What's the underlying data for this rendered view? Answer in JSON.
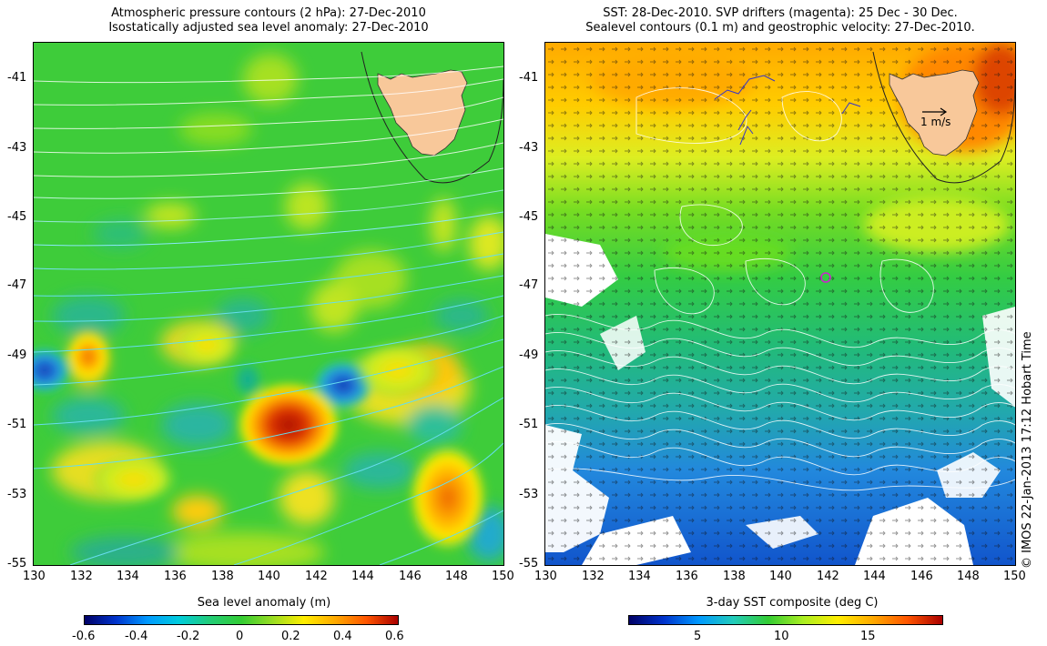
{
  "left": {
    "title_line1": "Atmospheric pressure contours (2 hPa): 27-Dec-2010",
    "title_line2": "Isostatically adjusted sea level anomaly: 27-Dec-2010",
    "y_ticks": [
      "-41",
      "-43",
      "-45",
      "-47",
      "-49",
      "-51",
      "-53",
      "-55"
    ],
    "x_ticks": [
      "130",
      "132",
      "134",
      "136",
      "138",
      "140",
      "142",
      "144",
      "146",
      "148",
      "150"
    ],
    "colorbar_title": "Sea level anomaly (m)",
    "colorbar_ticks": [
      "-0.6",
      "-0.4",
      "-0.2",
      "0",
      "0.2",
      "0.4",
      "0.6"
    ]
  },
  "right": {
    "title_line1": "SST: 28-Dec-2010. SVP drifters (magenta): 25 Dec - 30 Dec.",
    "title_line2": "Sealevel contours (0.1 m) and geostrophic velocity: 27-Dec-2010.",
    "y_ticks": [
      "-41",
      "-43",
      "-45",
      "-47",
      "-49",
      "-51",
      "-53",
      "-55"
    ],
    "x_ticks": [
      "130",
      "132",
      "134",
      "136",
      "138",
      "140",
      "142",
      "144",
      "146",
      "148",
      "150"
    ],
    "colorbar_title": "3-day SST composite (deg C)",
    "colorbar_ticks": [
      "5",
      "10",
      "15"
    ],
    "velocity_scale_label": "1 m/s"
  },
  "credit": "© IMOS 22-Jan-2013 17:12 Hobart Time",
  "colors": {
    "land": "#f8c89a",
    "field_green": "#33cc33",
    "contour_cyan": "#66ddee",
    "contour_white": "#ffffff",
    "drifter": "#cc22cc"
  }
}
